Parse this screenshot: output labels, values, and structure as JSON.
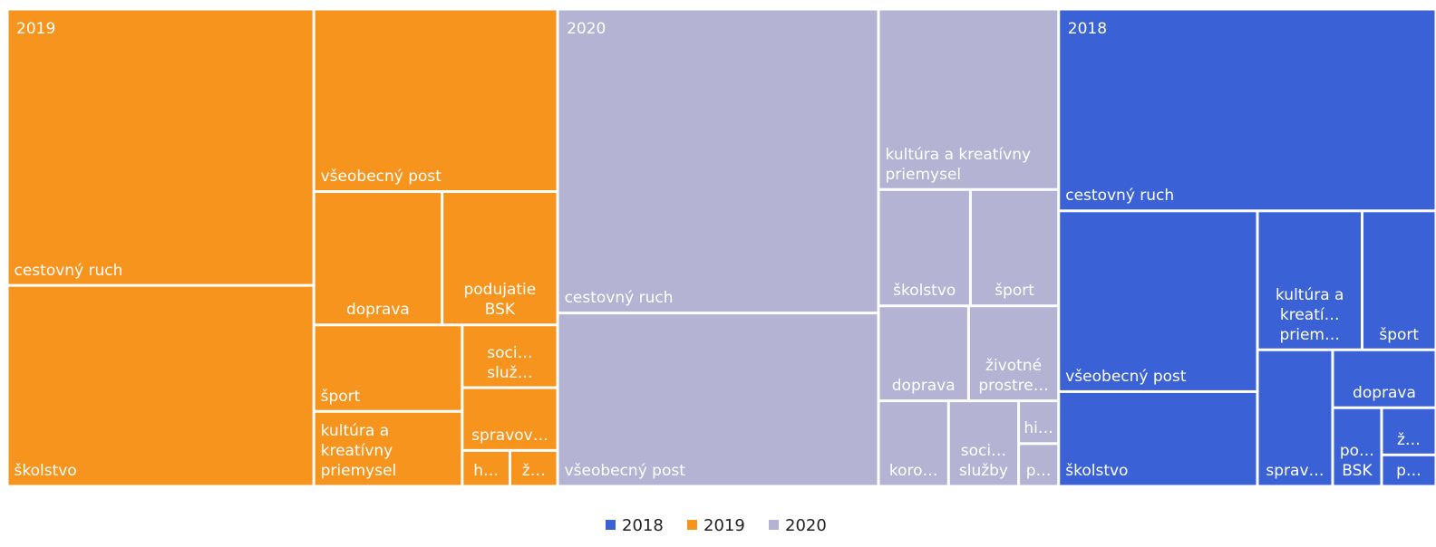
{
  "chart_data": {
    "type": "treemap",
    "series": [
      {
        "name": "2018",
        "color": "#3a62d6",
        "categories": [
          "cestovný ruch",
          "všeobecný post",
          "školstvo",
          "kultúra a kreatí… priem…",
          "šport",
          "sprav…",
          "doprava",
          "po… BSK",
          "ž…",
          "p…"
        ],
        "values": [
          89,
          42,
          22,
          17,
          12,
          12,
          7,
          4.5,
          3,
          2
        ]
      },
      {
        "name": "2019",
        "color": "#f7941d",
        "categories": [
          "cestovný ruch",
          "školstvo",
          "všeobecný post",
          "doprava",
          "podujatie BSK",
          "šport",
          "kultúra a kreatívny priemysel",
          "soci… služ…",
          "spravov…",
          "h…",
          "ž…"
        ],
        "values": [
          99,
          72,
          52,
          20,
          18,
          15,
          13,
          7,
          7,
          2,
          2
        ]
      },
      {
        "name": "2020",
        "color": "#b5b3d4",
        "categories": [
          "cestovný ruch",
          "všeobecný post",
          "kultúra a kreatívny priemysel",
          "školstvo",
          "šport",
          "doprava",
          "životné prostre…",
          "koro…",
          "soci… služby",
          "hi…",
          "p…"
        ],
        "values": [
          114,
          65,
          38,
          12.5,
          12,
          10,
          10,
          7,
          7,
          2,
          2
        ]
      }
    ],
    "legend": "bottom"
  }
}
